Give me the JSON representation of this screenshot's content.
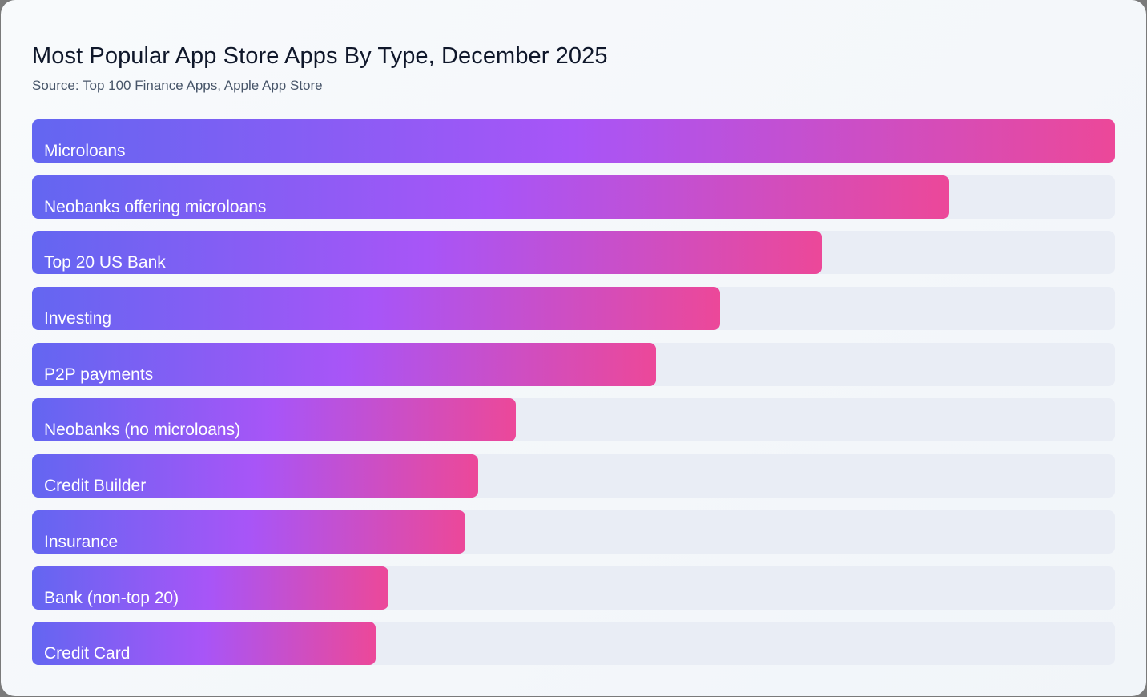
{
  "chart_data": {
    "type": "bar",
    "orientation": "horizontal",
    "title": "Most Popular App Store Apps By Type, December 2025",
    "subtitle": "Source: Top 100 Finance Apps, Apple App Store",
    "categories": [
      "Microloans",
      "Neobanks offering microloans",
      "Top 20 US Bank",
      "Investing",
      "P2P payments",
      "Neobanks (no microloans)",
      "Credit Builder",
      "Insurance",
      "Bank (non-top 20)",
      "Credit Card"
    ],
    "values_relative_percent": [
      100,
      84.7,
      72.9,
      63.5,
      57.6,
      44.7,
      41.2,
      40.0,
      32.9,
      31.7
    ],
    "xlim": [
      0,
      100
    ],
    "grid": false,
    "legend": "none",
    "colors": {
      "gradient_start": "#6366f1",
      "gradient_mid": "#a855f7",
      "gradient_end": "#ec4899",
      "track": "#e9edf5"
    }
  }
}
